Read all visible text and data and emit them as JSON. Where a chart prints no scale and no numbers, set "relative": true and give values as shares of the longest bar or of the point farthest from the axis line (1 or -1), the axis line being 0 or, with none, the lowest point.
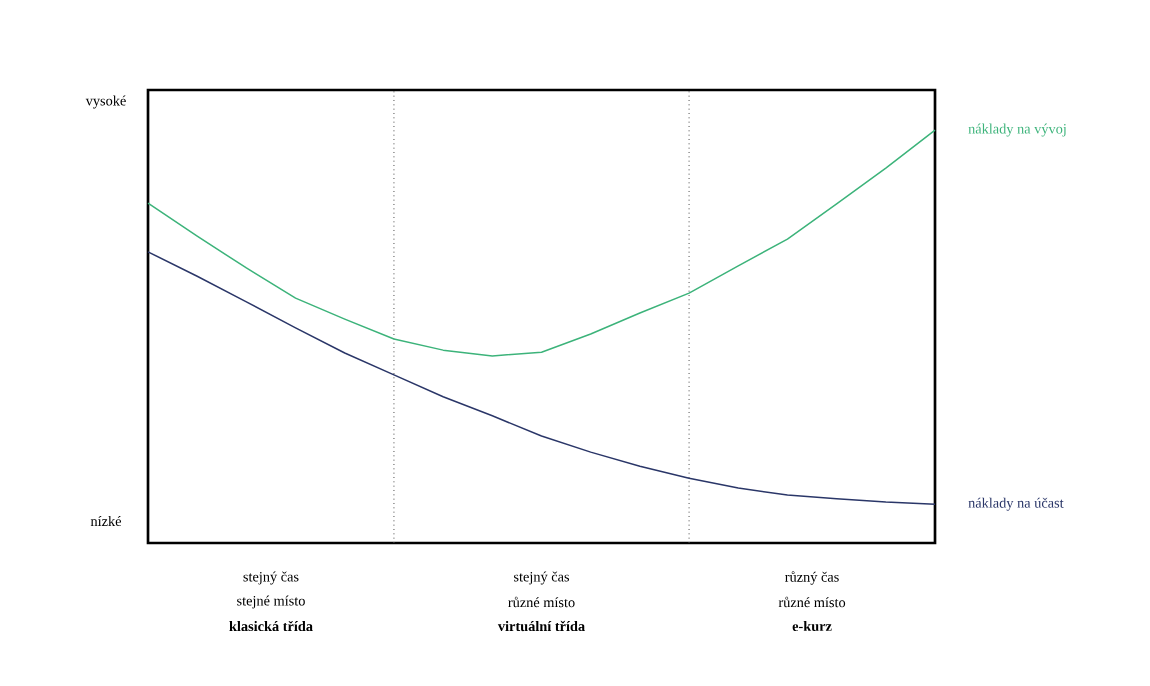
{
  "chart_data": {
    "type": "line",
    "relative": true,
    "categories": [
      null,
      null,
      null,
      null,
      null,
      null,
      null,
      null,
      null,
      null,
      null,
      null,
      null,
      null,
      null,
      null,
      null
    ],
    "series": [
      {
        "name": "náklady na vývoj",
        "color": "#3cb37a",
        "values": [
          0.823,
          0.743,
          0.666,
          0.593,
          0.542,
          0.494,
          0.467,
          0.453,
          0.462,
          0.506,
          0.557,
          0.605,
          0.671,
          0.736,
          0.821,
          0.908,
          1
        ]
      },
      {
        "name": "náklady na účast",
        "color": "#2a3668",
        "values": [
          0.705,
          0.646,
          0.584,
          0.521,
          0.46,
          0.407,
          0.354,
          0.308,
          0.259,
          0.22,
          0.186,
          0.157,
          0.133,
          0.116,
          0.107,
          0.099,
          0.094
        ]
      }
    ],
    "annotations": [
      "vysoké",
      "nízké",
      "stejný čas",
      "stejné místo",
      "**klasická třída**",
      "stejný čas",
      "různé místo",
      "**virtuální třída**",
      "různý čas",
      "různé místo",
      "**e-kurz**"
    ],
    "marker": "none",
    "line_style": "solid"
  }
}
